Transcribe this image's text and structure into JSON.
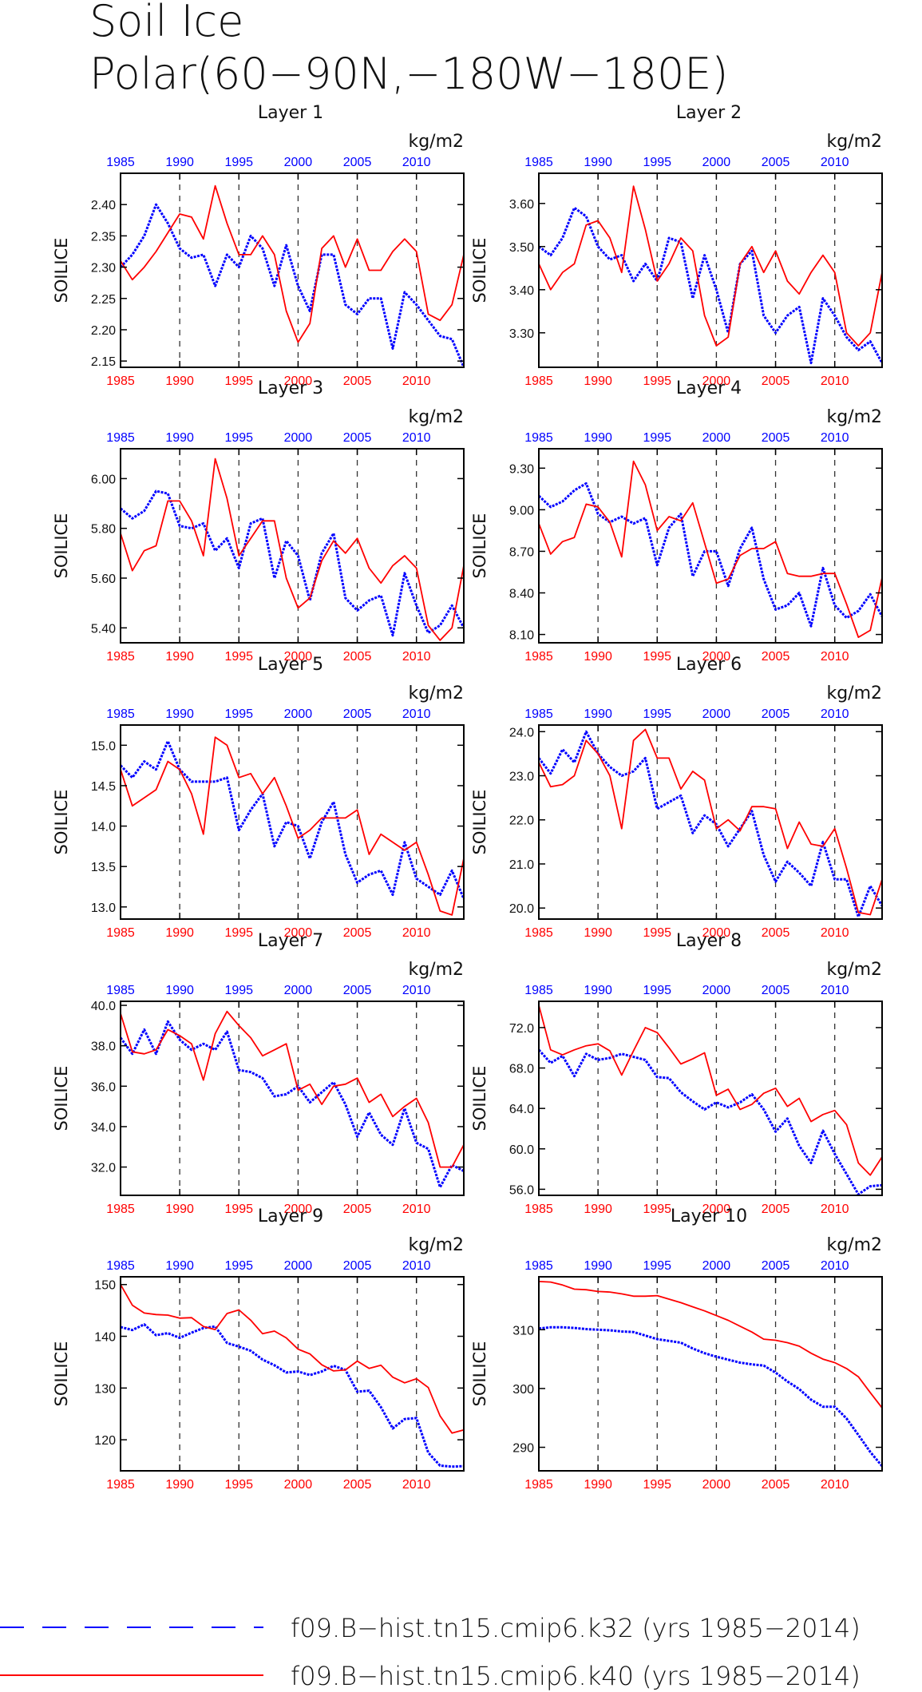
{
  "title": [
    "Soil Ice",
    "Polar(60−90N,−180W−180E)"
  ],
  "legend": [
    {
      "label": "f09.B−hist.tn15.cmip6.k32 (yrs 1985−2014)",
      "color": "#0000ff",
      "style": "dashed"
    },
    {
      "label": "f09.B−hist.tn15.cmip6.k40 (yrs 1985−2014)",
      "color": "#ff0000",
      "style": "solid"
    }
  ],
  "chart_data": [
    {
      "type": "line",
      "title": "Layer 1",
      "ylabel": "SOILICE",
      "units": "kg/m2",
      "xlim": [
        1985,
        2014
      ],
      "ylim": [
        2.14,
        2.45
      ],
      "yticks": [
        "2.15",
        "2.20",
        "2.25",
        "2.30",
        "2.35",
        "2.40"
      ],
      "ytick_values": [
        2.15,
        2.2,
        2.25,
        2.3,
        2.35,
        2.4
      ],
      "xticks": [
        "1985",
        "1990",
        "1995",
        "2000",
        "2005",
        "2010"
      ],
      "series": [
        {
          "name": "f09.B−hist.tn15.cmip6.k32",
          "color": "#0000ff",
          "values": [
            2.3,
            2.32,
            2.35,
            2.4,
            2.37,
            2.33,
            2.315,
            2.32,
            2.27,
            2.32,
            2.3,
            2.35,
            2.33,
            2.27,
            2.335,
            2.27,
            2.23,
            2.32,
            2.32,
            2.24,
            2.225,
            2.25,
            2.25,
            2.17,
            2.26,
            2.24,
            2.215,
            2.19,
            2.185,
            2.14
          ]
        },
        {
          "name": "f09.B−hist.tn15.cmip6.k40",
          "color": "#ff0000",
          "values": [
            2.31,
            2.28,
            2.3,
            2.325,
            2.355,
            2.385,
            2.38,
            2.345,
            2.43,
            2.37,
            2.32,
            2.32,
            2.35,
            2.32,
            2.23,
            2.18,
            2.21,
            2.33,
            2.35,
            2.3,
            2.345,
            2.295,
            2.295,
            2.325,
            2.345,
            2.325,
            2.225,
            2.215,
            2.24,
            2.32
          ]
        }
      ]
    },
    {
      "type": "line",
      "title": "Layer 2",
      "ylabel": "SOILICE",
      "units": "kg/m2",
      "xlim": [
        1985,
        2014
      ],
      "ylim": [
        3.22,
        3.67
      ],
      "yticks": [
        "3.30",
        "3.40",
        "3.50",
        "3.60"
      ],
      "ytick_values": [
        3.3,
        3.4,
        3.5,
        3.6
      ],
      "xticks": [
        "1985",
        "1990",
        "1995",
        "2000",
        "2005",
        "2010"
      ],
      "series": [
        {
          "name": "f09.B−hist.tn15.cmip6.k32",
          "color": "#0000ff",
          "values": [
            3.5,
            3.48,
            3.52,
            3.59,
            3.57,
            3.5,
            3.47,
            3.48,
            3.42,
            3.46,
            3.42,
            3.52,
            3.51,
            3.38,
            3.48,
            3.4,
            3.3,
            3.46,
            3.49,
            3.34,
            3.3,
            3.34,
            3.36,
            3.23,
            3.38,
            3.34,
            3.29,
            3.26,
            3.28,
            3.23
          ]
        },
        {
          "name": "f09.B−hist.tn15.cmip6.k40",
          "color": "#ff0000",
          "values": [
            3.46,
            3.4,
            3.44,
            3.46,
            3.55,
            3.56,
            3.52,
            3.44,
            3.64,
            3.54,
            3.42,
            3.46,
            3.52,
            3.49,
            3.34,
            3.27,
            3.29,
            3.46,
            3.5,
            3.44,
            3.49,
            3.42,
            3.39,
            3.44,
            3.48,
            3.44,
            3.3,
            3.27,
            3.3,
            3.44
          ]
        }
      ]
    },
    {
      "type": "line",
      "title": "Layer 3",
      "ylabel": "SOILICE",
      "units": "kg/m2",
      "xlim": [
        1985,
        2014
      ],
      "ylim": [
        5.34,
        6.12
      ],
      "yticks": [
        "5.40",
        "5.60",
        "5.80",
        "6.00"
      ],
      "ytick_values": [
        5.4,
        5.6,
        5.8,
        6.0
      ],
      "xticks": [
        "1985",
        "1990",
        "1995",
        "2000",
        "2005",
        "2010"
      ],
      "series": [
        {
          "name": "f09.B−hist.tn15.cmip6.k32",
          "color": "#0000ff",
          "values": [
            5.88,
            5.84,
            5.87,
            5.95,
            5.94,
            5.81,
            5.8,
            5.82,
            5.71,
            5.76,
            5.64,
            5.82,
            5.84,
            5.6,
            5.75,
            5.69,
            5.51,
            5.7,
            5.78,
            5.52,
            5.47,
            5.51,
            5.53,
            5.37,
            5.62,
            5.49,
            5.38,
            5.41,
            5.49,
            5.4
          ]
        },
        {
          "name": "f09.B−hist.tn15.cmip6.k40",
          "color": "#ff0000",
          "values": [
            5.78,
            5.63,
            5.71,
            5.73,
            5.91,
            5.91,
            5.83,
            5.69,
            6.08,
            5.92,
            5.69,
            5.76,
            5.83,
            5.83,
            5.6,
            5.48,
            5.52,
            5.67,
            5.75,
            5.7,
            5.76,
            5.64,
            5.58,
            5.65,
            5.69,
            5.64,
            5.41,
            5.35,
            5.4,
            5.65
          ]
        }
      ]
    },
    {
      "type": "line",
      "title": "Layer 4",
      "ylabel": "SOILICE",
      "units": "kg/m2",
      "xlim": [
        1985,
        2014
      ],
      "ylim": [
        8.04,
        9.44
      ],
      "yticks": [
        "8.10",
        "8.40",
        "8.70",
        "9.00",
        "9.30"
      ],
      "ytick_values": [
        8.1,
        8.4,
        8.7,
        9.0,
        9.3
      ],
      "xticks": [
        "1985",
        "1990",
        "1995",
        "2000",
        "2005",
        "2010"
      ],
      "series": [
        {
          "name": "f09.B−hist.tn15.cmip6.k32",
          "color": "#0000ff",
          "values": [
            9.1,
            9.02,
            9.06,
            9.14,
            9.19,
            8.97,
            8.91,
            8.95,
            8.9,
            8.94,
            8.6,
            8.87,
            8.97,
            8.52,
            8.7,
            8.7,
            8.45,
            8.72,
            8.87,
            8.5,
            8.28,
            8.31,
            8.4,
            8.16,
            8.58,
            8.31,
            8.22,
            8.27,
            8.39,
            8.23
          ]
        },
        {
          "name": "f09.B−hist.tn15.cmip6.k40",
          "color": "#ff0000",
          "values": [
            8.9,
            8.68,
            8.77,
            8.8,
            9.04,
            9.02,
            8.91,
            8.66,
            9.35,
            9.18,
            8.85,
            8.95,
            8.92,
            9.05,
            8.76,
            8.47,
            8.5,
            8.67,
            8.72,
            8.72,
            8.77,
            8.54,
            8.52,
            8.52,
            8.54,
            8.54,
            8.32,
            8.08,
            8.13,
            8.51
          ]
        }
      ]
    },
    {
      "type": "line",
      "title": "Layer 5",
      "ylabel": "SOILICE",
      "units": "kg/m2",
      "xlim": [
        1985,
        2014
      ],
      "ylim": [
        12.85,
        15.25
      ],
      "yticks": [
        "13.0",
        "13.5",
        "14.0",
        "14.5",
        "15.0"
      ],
      "ytick_values": [
        13.0,
        13.5,
        14.0,
        14.5,
        15.0
      ],
      "xticks": [
        "1985",
        "1990",
        "1995",
        "2000",
        "2005",
        "2010"
      ],
      "series": [
        {
          "name": "f09.B−hist.tn15.cmip6.k32",
          "color": "#0000ff",
          "values": [
            14.75,
            14.6,
            14.8,
            14.7,
            15.05,
            14.7,
            14.55,
            14.55,
            14.55,
            14.6,
            13.95,
            14.2,
            14.4,
            13.75,
            14.05,
            14.0,
            13.6,
            14.05,
            14.3,
            13.65,
            13.3,
            13.4,
            13.45,
            13.15,
            13.8,
            13.35,
            13.25,
            13.15,
            13.45,
            13.1
          ]
        },
        {
          "name": "f09.B−hist.tn15.cmip6.k40",
          "color": "#ff0000",
          "values": [
            14.7,
            14.25,
            14.35,
            14.45,
            14.8,
            14.7,
            14.4,
            13.9,
            15.1,
            15.0,
            14.6,
            14.65,
            14.4,
            14.6,
            14.25,
            13.85,
            13.95,
            14.1,
            14.1,
            14.1,
            14.2,
            13.65,
            13.9,
            13.8,
            13.7,
            13.8,
            13.4,
            12.95,
            12.9,
            13.6
          ]
        }
      ]
    },
    {
      "type": "line",
      "title": "Layer 6",
      "ylabel": "SOILICE",
      "units": "kg/m2",
      "xlim": [
        1985,
        2014
      ],
      "ylim": [
        19.75,
        24.15
      ],
      "yticks": [
        "20.0",
        "21.0",
        "22.0",
        "23.0",
        "24.0"
      ],
      "ytick_values": [
        20.0,
        21.0,
        22.0,
        23.0,
        24.0
      ],
      "xticks": [
        "1985",
        "1990",
        "1995",
        "2000",
        "2005",
        "2010"
      ],
      "series": [
        {
          "name": "f09.B−hist.tn15.cmip6.k32",
          "color": "#0000ff",
          "values": [
            23.4,
            23.05,
            23.6,
            23.3,
            24.0,
            23.5,
            23.2,
            23.0,
            23.1,
            23.4,
            22.25,
            22.4,
            22.55,
            21.7,
            22.1,
            21.9,
            21.4,
            21.8,
            22.2,
            21.2,
            20.6,
            21.05,
            20.8,
            20.5,
            21.5,
            20.65,
            20.65,
            19.8,
            20.5,
            20.05
          ]
        },
        {
          "name": "f09.B−hist.tn15.cmip6.k40",
          "color": "#ff0000",
          "values": [
            23.3,
            22.75,
            22.8,
            23.0,
            23.8,
            23.5,
            23.0,
            21.8,
            23.8,
            24.05,
            23.4,
            23.4,
            22.7,
            23.1,
            22.9,
            21.8,
            22.0,
            21.75,
            22.3,
            22.3,
            22.25,
            21.35,
            21.95,
            21.45,
            21.4,
            21.8,
            20.9,
            19.9,
            19.85,
            20.65
          ]
        }
      ]
    },
    {
      "type": "line",
      "title": "Layer 7",
      "ylabel": "SOILICE",
      "units": "kg/m2",
      "xlim": [
        1985,
        2014
      ],
      "ylim": [
        30.6,
        40.2
      ],
      "yticks": [
        "32.0",
        "34.0",
        "36.0",
        "38.0",
        "40.0"
      ],
      "ytick_values": [
        32.0,
        34.0,
        36.0,
        38.0,
        40.0
      ],
      "xticks": [
        "1985",
        "1990",
        "1995",
        "2000",
        "2005",
        "2010"
      ],
      "series": [
        {
          "name": "f09.B−hist.tn15.cmip6.k32",
          "color": "#0000ff",
          "values": [
            38.4,
            37.6,
            38.8,
            37.6,
            39.2,
            38.3,
            37.8,
            38.1,
            37.8,
            38.7,
            36.8,
            36.7,
            36.4,
            35.5,
            35.6,
            36.0,
            35.2,
            35.7,
            36.2,
            35.1,
            33.5,
            34.7,
            33.6,
            33.1,
            34.9,
            33.2,
            32.9,
            31.0,
            32.1,
            31.8
          ]
        },
        {
          "name": "f09.B−hist.tn15.cmip6.k40",
          "color": "#ff0000",
          "values": [
            39.6,
            37.7,
            37.6,
            37.8,
            38.8,
            38.5,
            38.1,
            36.3,
            38.6,
            39.7,
            39.0,
            38.4,
            37.5,
            37.8,
            38.1,
            35.8,
            36.1,
            35.1,
            36.0,
            36.1,
            36.4,
            35.2,
            35.6,
            34.5,
            35.0,
            35.4,
            34.2,
            32.0,
            32.0,
            33.1
          ]
        }
      ]
    },
    {
      "type": "line",
      "title": "Layer 8",
      "ylabel": "SOILICE",
      "units": "kg/m2",
      "xlim": [
        1985,
        2014
      ],
      "ylim": [
        55.4,
        74.6
      ],
      "yticks": [
        "56.0",
        "60.0",
        "64.0",
        "68.0",
        "72.0"
      ],
      "ytick_values": [
        56.0,
        60.0,
        64.0,
        68.0,
        72.0
      ],
      "xticks": [
        "1985",
        "1990",
        "1995",
        "2000",
        "2005",
        "2010"
      ],
      "series": [
        {
          "name": "f09.B−hist.tn15.cmip6.k32",
          "color": "#0000ff",
          "values": [
            69.8,
            68.5,
            69.2,
            67.2,
            69.4,
            68.8,
            69.0,
            69.4,
            69.1,
            68.8,
            67.1,
            67.0,
            65.6,
            64.7,
            63.9,
            64.6,
            64.1,
            64.6,
            65.4,
            63.9,
            61.7,
            63.0,
            60.3,
            58.6,
            61.8,
            59.5,
            57.5,
            55.5,
            56.3,
            56.4
          ]
        },
        {
          "name": "f09.B−hist.tn15.cmip6.k40",
          "color": "#ff0000",
          "values": [
            74.2,
            69.8,
            69.3,
            69.8,
            70.2,
            70.4,
            69.7,
            67.3,
            69.7,
            72.0,
            71.5,
            70.0,
            68.4,
            68.9,
            69.5,
            65.3,
            65.9,
            63.9,
            64.4,
            65.5,
            66.0,
            64.2,
            65.0,
            62.7,
            63.4,
            63.8,
            62.4,
            58.6,
            57.4,
            59.2
          ]
        }
      ]
    },
    {
      "type": "line",
      "title": "Layer 9",
      "ylabel": "SOILICE",
      "units": "kg/m2",
      "xlim": [
        1985,
        2014
      ],
      "ylim": [
        114.0,
        151.5
      ],
      "yticks": [
        "120",
        "130",
        "140",
        "150"
      ],
      "ytick_values": [
        120,
        130,
        140,
        150
      ],
      "xticks": [
        "1985",
        "1990",
        "1995",
        "2000",
        "2005",
        "2010"
      ],
      "series": [
        {
          "name": "f09.B−hist.tn15.cmip6.k32",
          "color": "#0000ff",
          "values": [
            141.8,
            141.2,
            142.3,
            140.2,
            140.6,
            139.7,
            140.7,
            141.6,
            141.9,
            138.7,
            138.0,
            137.2,
            135.5,
            134.4,
            133.0,
            133.2,
            132.5,
            133.2,
            134.3,
            133.5,
            129.3,
            129.5,
            126.3,
            122.2,
            124.0,
            124.2,
            117.5,
            115.0,
            114.8,
            114.9
          ]
        },
        {
          "name": "f09.B−hist.tn15.cmip6.k40",
          "color": "#ff0000",
          "values": [
            150.0,
            146.0,
            144.5,
            144.2,
            144.1,
            143.5,
            143.6,
            141.9,
            141.3,
            144.4,
            145.1,
            143.1,
            140.5,
            141.0,
            139.7,
            137.5,
            136.6,
            134.5,
            133.3,
            133.5,
            135.2,
            133.8,
            134.4,
            132.1,
            131.0,
            131.8,
            130.1,
            124.6,
            121.3,
            121.9
          ]
        }
      ]
    },
    {
      "type": "line",
      "title": "Layer 10",
      "ylabel": "SOILICE",
      "units": "kg/m2",
      "xlim": [
        1985,
        2014
      ],
      "ylim": [
        286.0,
        319.0
      ],
      "yticks": [
        "290",
        "300",
        "310"
      ],
      "ytick_values": [
        290,
        300,
        310
      ],
      "xticks": [
        "1985",
        "1990",
        "1995",
        "2000",
        "2005",
        "2010"
      ],
      "series": [
        {
          "name": "f09.B−hist.tn15.cmip6.k32",
          "color": "#0000ff",
          "values": [
            310.2,
            310.4,
            310.4,
            310.3,
            310.1,
            310.0,
            309.9,
            309.7,
            309.6,
            309.0,
            308.4,
            308.1,
            307.8,
            306.8,
            306.0,
            305.4,
            304.9,
            304.4,
            304.1,
            303.9,
            302.7,
            301.2,
            299.9,
            298.1,
            296.9,
            296.9,
            294.9,
            292.1,
            289.2,
            286.8
          ]
        },
        {
          "name": "f09.B−hist.tn15.cmip6.k40",
          "color": "#ff0000",
          "values": [
            318.2,
            318.1,
            317.6,
            316.9,
            316.8,
            316.5,
            316.4,
            316.1,
            315.7,
            315.7,
            315.8,
            315.2,
            314.6,
            313.9,
            313.2,
            312.4,
            311.6,
            310.6,
            309.6,
            308.4,
            308.2,
            307.8,
            307.2,
            306.0,
            305.0,
            304.4,
            303.4,
            302.0,
            299.3,
            296.7
          ]
        }
      ]
    }
  ]
}
